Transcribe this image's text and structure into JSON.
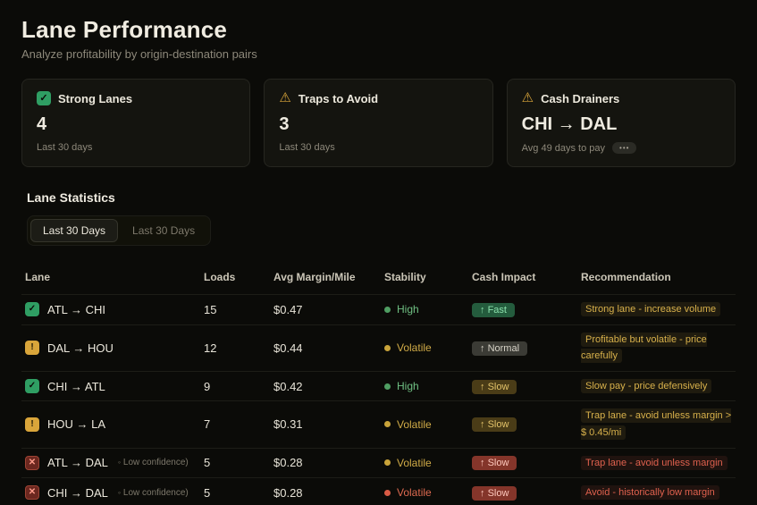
{
  "header": {
    "title": "Lane Performance",
    "subtitle": "Analyze profitability by origin-destination pairs"
  },
  "cards": [
    {
      "icon": "check",
      "title": "Strong Lanes",
      "value": "4",
      "caption": "Last 30 days",
      "more": ""
    },
    {
      "icon": "warning",
      "title": "Traps to Avoid",
      "value": "3",
      "caption": "Last 30 days",
      "more": ""
    },
    {
      "icon": "warning",
      "title": "Cash Drainers",
      "value": "CHI → DAL",
      "caption": "Avg 49 days to pay",
      "more": "•••"
    }
  ],
  "section": {
    "title": "Lane Statistics",
    "toggles": [
      {
        "label": "Last 30 Days",
        "active": true
      },
      {
        "label": "Last 30 Days",
        "active": false
      }
    ]
  },
  "table": {
    "columns": [
      "Lane",
      "Loads",
      "Avg Margin/Mile",
      "Stability",
      "Cash Impact",
      "Recommendation"
    ],
    "rows": [
      {
        "icon_glyph": "✓",
        "icon_type": "good",
        "lane": "ATL → CHI",
        "note": "",
        "loads": "15",
        "margin": "$0.47",
        "stability": "High",
        "stability_type": "good",
        "cash_arrow": "↑",
        "cash_label": "Fast",
        "cash_type": "fast",
        "rec": "Strong lane - increase volume",
        "rec_type": "warn"
      },
      {
        "icon_glyph": "!",
        "icon_type": "warn",
        "lane": "DAL → HOU",
        "note": "",
        "loads": "12",
        "margin": "$0.44",
        "stability": "Volatile",
        "stability_type": "warn",
        "cash_arrow": "↑",
        "cash_label": "Normal",
        "cash_type": "normal",
        "rec": "Profitable but volatile - price carefully",
        "rec_type": "warn"
      },
      {
        "icon_glyph": "✓",
        "icon_type": "good",
        "lane": "CHI → ATL",
        "note": "",
        "loads": "9",
        "margin": "$0.42",
        "stability": "High",
        "stability_type": "good",
        "cash_arrow": "↑",
        "cash_label": "Slow",
        "cash_type": "slow",
        "rec": "Slow pay - price defensively",
        "rec_type": "warn"
      },
      {
        "icon_glyph": "!",
        "icon_type": "warn",
        "lane": "HOU → LA",
        "note": "",
        "loads": "7",
        "margin": "$0.31",
        "stability": "Volatile",
        "stability_type": "warn",
        "cash_arrow": "↑",
        "cash_label": "Slow",
        "cash_type": "slow",
        "rec": "Trap lane - avoid unless margin > $ 0.45/mi",
        "rec_type": "warn"
      },
      {
        "icon_glyph": "✕",
        "icon_type": "bad",
        "lane": "ATL → DAL",
        "note": "Low confidence)",
        "loads": "5",
        "margin": "$0.28",
        "stability": "Volatile",
        "stability_type": "warn",
        "cash_arrow": "↑",
        "cash_label": "Slow",
        "cash_type": "slow-bad",
        "rec": "Trap lane - avoid unless margin",
        "rec_type": "bad"
      },
      {
        "icon_glyph": "✕",
        "icon_type": "bad",
        "lane": "CHI → DAL",
        "note": "Low confidence)",
        "loads": "5",
        "margin": "$0.28",
        "stability": "Volatile",
        "stability_type": "bad",
        "cash_arrow": "↑",
        "cash_label": "Slow",
        "cash_type": "slow-bad",
        "rec": "Avoid - historically low margin",
        "rec_type": "bad"
      }
    ]
  },
  "colors": {
    "accent_green": "#2f9e63",
    "accent_yellow": "#d9a53a",
    "accent_red": "#e0614e"
  }
}
